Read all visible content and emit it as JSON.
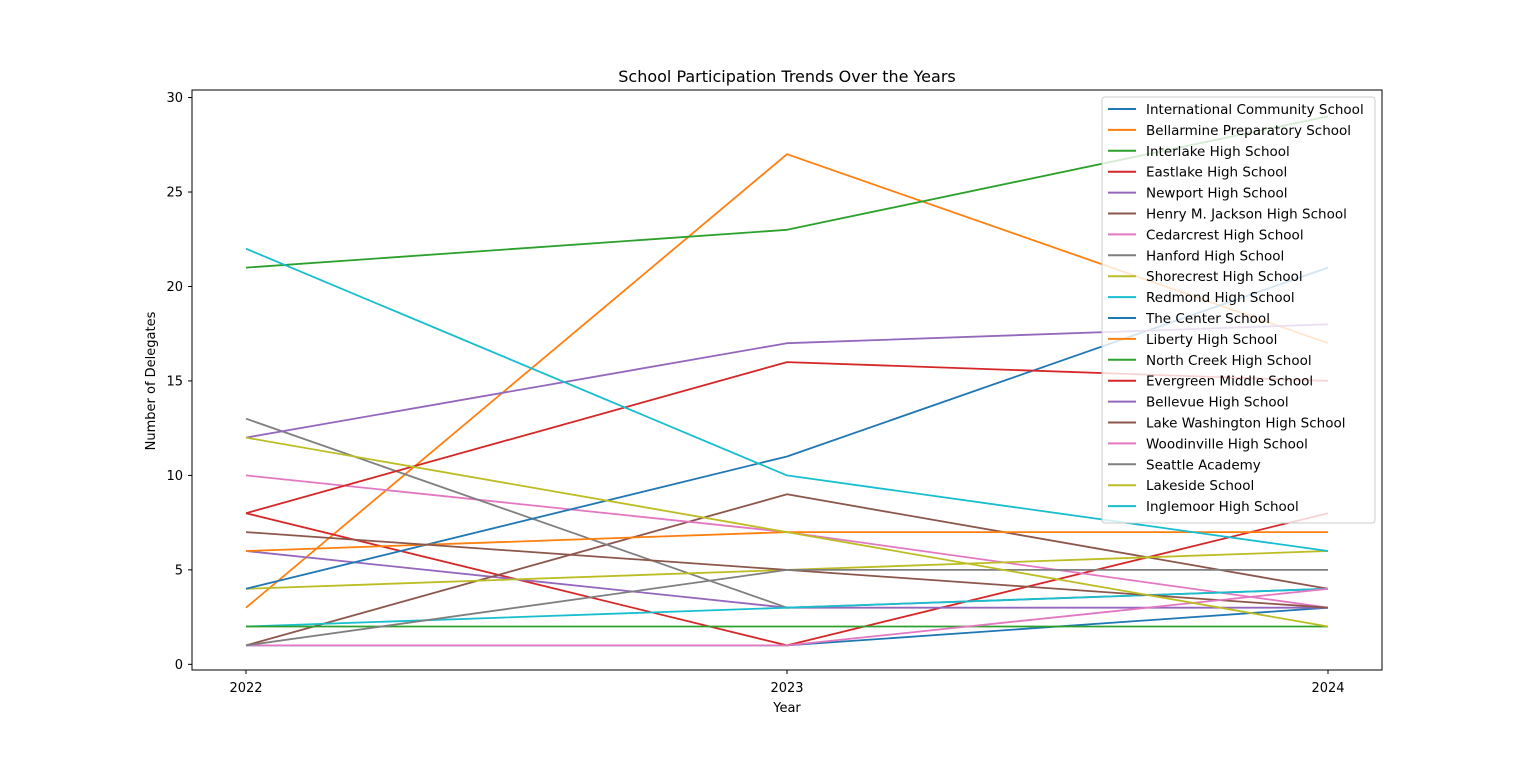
{
  "chart_data": {
    "type": "line",
    "title": "School Participation Trends Over the Years",
    "xlabel": "Year",
    "ylabel": "Number of Delegates",
    "x": [
      2022,
      2023,
      2024
    ],
    "x_tick_labels": [
      "2022",
      "2023",
      "2024"
    ],
    "ylim": [
      -0.3,
      30.4
    ],
    "y_ticks": [
      0,
      5,
      10,
      15,
      20,
      25,
      30
    ],
    "y_tick_labels": [
      "0",
      "5",
      "10",
      "15",
      "20",
      "25",
      "30"
    ],
    "grid": false,
    "legend_position": "top-right",
    "series": [
      {
        "name": "International Community School",
        "color": "#1f77b4",
        "values": [
          1,
          1,
          3
        ]
      },
      {
        "name": "Bellarmine Preparatory School",
        "color": "#ff7f0e",
        "values": [
          3,
          27,
          17
        ]
      },
      {
        "name": "Interlake High School",
        "color": "#2ca02c",
        "values": [
          21,
          23,
          29
        ]
      },
      {
        "name": "Eastlake High School",
        "color": "#d62728",
        "values": [
          8,
          1,
          8
        ]
      },
      {
        "name": "Newport High School",
        "color": "#9467bd",
        "values": [
          6,
          3,
          3
        ]
      },
      {
        "name": "Henry M. Jackson High School",
        "color": "#8c564b",
        "values": [
          1,
          9,
          4
        ]
      },
      {
        "name": "Cedarcrest High School",
        "color": "#e377c2",
        "values": [
          10,
          7,
          3
        ]
      },
      {
        "name": "Hanford High School",
        "color": "#7f7f7f",
        "values": [
          13,
          3,
          4
        ]
      },
      {
        "name": "Shorecrest High School",
        "color": "#bcbd22",
        "values": [
          4,
          5,
          6
        ]
      },
      {
        "name": "Redmond High School",
        "color": "#17becf",
        "values": [
          2,
          3,
          4
        ]
      },
      {
        "name": "The Center School",
        "color": "#1f77b4",
        "values": [
          4,
          11,
          21
        ]
      },
      {
        "name": "Liberty High School",
        "color": "#ff7f0e",
        "values": [
          6,
          7,
          7
        ]
      },
      {
        "name": "North Creek High School",
        "color": "#2ca02c",
        "values": [
          2,
          2,
          2
        ]
      },
      {
        "name": "Evergreen Middle School",
        "color": "#d62728",
        "values": [
          8,
          16,
          15
        ]
      },
      {
        "name": "Bellevue High School",
        "color": "#9467bd",
        "values": [
          12,
          17,
          18
        ]
      },
      {
        "name": "Lake Washington High School",
        "color": "#8c564b",
        "values": [
          7,
          5,
          3
        ]
      },
      {
        "name": "Woodinville High School",
        "color": "#e377c2",
        "values": [
          1,
          1,
          4
        ]
      },
      {
        "name": "Seattle Academy",
        "color": "#7f7f7f",
        "values": [
          1,
          5,
          5
        ]
      },
      {
        "name": "Lakeside School",
        "color": "#bcbd22",
        "values": [
          12,
          7,
          2
        ]
      },
      {
        "name": "Inglemoor High School",
        "color": "#17becf",
        "values": [
          22,
          10,
          6
        ]
      }
    ]
  }
}
